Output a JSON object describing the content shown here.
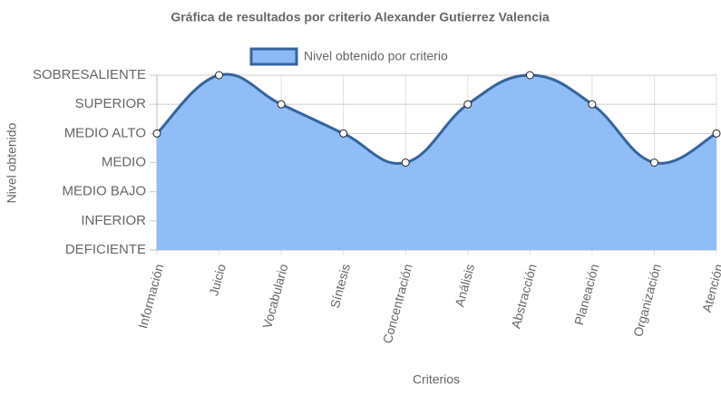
{
  "chart_data": {
    "type": "area",
    "title": "Gráfica de resultados por criterio Alexander Gutierrez Valencia",
    "x_label": "Criterios",
    "y_label": "Nivel obtenido",
    "categories": [
      "Información",
      "Juicio",
      "Vocabulario",
      "Síntesis",
      "Concentración",
      "Análisis",
      "Abstracción",
      "Planeación",
      "Organización",
      "Atención"
    ],
    "series": [
      {
        "name": "Nivel obtenido por criterio",
        "color": "#34649c",
        "fill": "#8ab9f5",
        "values": [
          4,
          6,
          5,
          4,
          3,
          5,
          6,
          5,
          3,
          4
        ]
      }
    ],
    "ylim": [
      0,
      6
    ],
    "yticks": [
      {
        "value": 0,
        "label": "DEFICIENTE"
      },
      {
        "value": 1,
        "label": "INFERIOR"
      },
      {
        "value": 2,
        "label": "MEDIO BAJO"
      },
      {
        "value": 3,
        "label": "MEDIO"
      },
      {
        "value": 4,
        "label": "MEDIO ALTO"
      },
      {
        "value": 5,
        "label": "SUPERIOR"
      },
      {
        "value": 6,
        "label": "SOBRESALIENTE"
      }
    ],
    "grid": true,
    "legend": "top"
  }
}
